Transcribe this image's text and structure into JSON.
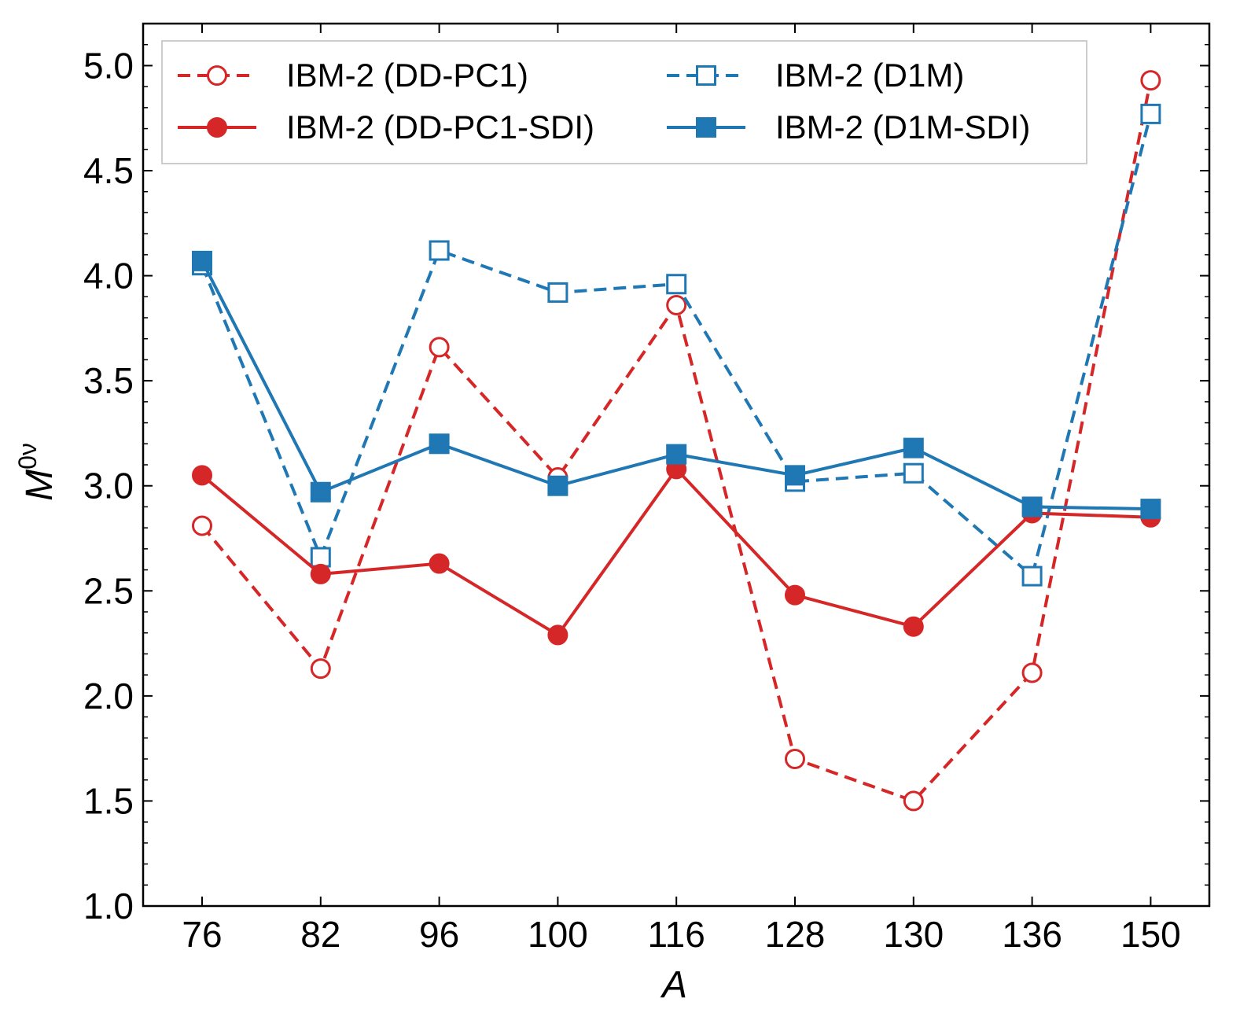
{
  "chart_data": {
    "type": "line",
    "title": "",
    "xlabel": "A",
    "ylabel": "M",
    "ylabel_superscript": "0ν",
    "categories": [
      "76",
      "82",
      "96",
      "100",
      "116",
      "128",
      "130",
      "136",
      "150"
    ],
    "ylim": [
      1.0,
      5.2
    ],
    "yticks": [
      "1.0",
      "1.5",
      "2.0",
      "2.5",
      "3.0",
      "3.5",
      "4.0",
      "4.5",
      "5.0"
    ],
    "legend_position": "top",
    "series": [
      {
        "name": "IBM-2 (DD-PC1)",
        "color": "#d62728",
        "dashed": true,
        "marker": "circle",
        "filled": false,
        "values": [
          2.81,
          2.13,
          3.66,
          3.04,
          3.86,
          1.7,
          1.5,
          2.11,
          4.93
        ]
      },
      {
        "name": "IBM-2 (D1M)",
        "color": "#1f77b4",
        "dashed": true,
        "marker": "square",
        "filled": false,
        "values": [
          4.05,
          2.66,
          4.12,
          3.92,
          3.96,
          3.02,
          3.06,
          2.57,
          4.77
        ]
      },
      {
        "name": "IBM-2 (DD-PC1-SDI)",
        "color": "#d62728",
        "dashed": false,
        "marker": "circle",
        "filled": true,
        "values": [
          3.05,
          2.58,
          2.63,
          2.29,
          3.08,
          2.48,
          2.33,
          2.87,
          2.85
        ]
      },
      {
        "name": "IBM-2 (D1M-SDI)",
        "color": "#1f77b4",
        "dashed": false,
        "marker": "square",
        "filled": true,
        "values": [
          4.07,
          2.97,
          3.2,
          3.0,
          3.15,
          3.05,
          3.18,
          2.9,
          2.89
        ]
      }
    ]
  }
}
